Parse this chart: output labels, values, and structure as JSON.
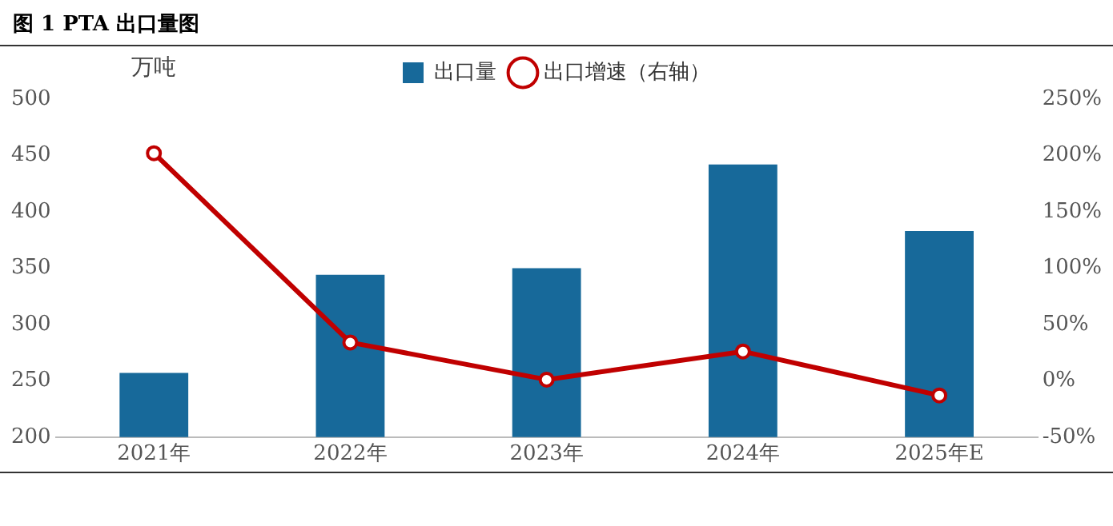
{
  "chart_data": {
    "type": "bar",
    "title": "图 1 PTA 出口量图",
    "ylabel": "万吨",
    "categories": [
      "2021年",
      "2022年",
      "2023年",
      "2024年",
      "2025年E"
    ],
    "series": [
      {
        "name": "出口量",
        "color": "#17699a",
        "values": [
          257,
          344,
          350,
          442,
          383
        ]
      },
      {
        "name": "出口增速（右轴）",
        "type": "line",
        "axis": "y2",
        "color": "#c00000",
        "values": [
          202,
          34,
          1,
          26,
          -13
        ]
      }
    ],
    "ylim": [
      200,
      500
    ],
    "yticks": [
      200,
      250,
      300,
      350,
      400,
      450,
      500
    ],
    "y2lim": [
      -50,
      250
    ],
    "y2ticks": [
      {
        "value": -50,
        "label": "-50%"
      },
      {
        "value": 0,
        "label": "0%"
      },
      {
        "value": 50,
        "label": "50%"
      },
      {
        "value": 100,
        "label": "100%"
      },
      {
        "value": 150,
        "label": "150%"
      },
      {
        "value": 200,
        "label": "200%"
      },
      {
        "value": 250,
        "label": "250%"
      }
    ],
    "legend": "top",
    "marker": "circle",
    "grid": false
  }
}
